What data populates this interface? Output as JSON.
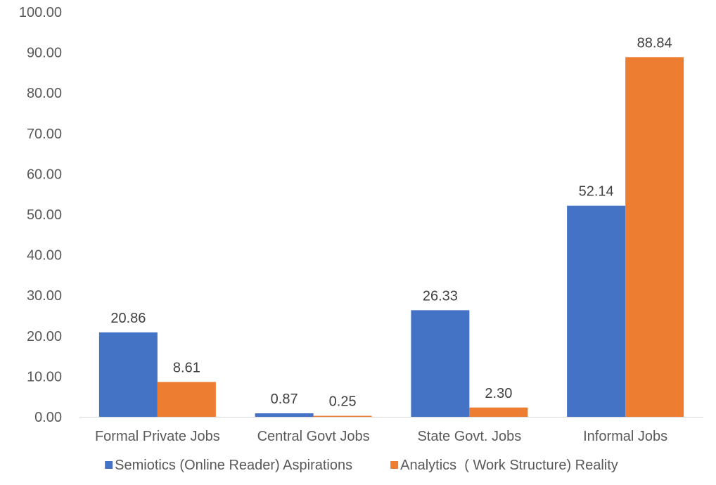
{
  "chart_data": {
    "type": "bar",
    "title": "",
    "xlabel": "",
    "ylabel": "",
    "categories": [
      "Formal Private Jobs",
      "Central Govt Jobs",
      "State Govt. Jobs",
      "Informal Jobs"
    ],
    "series": [
      {
        "name": "Semiotics (Online Reader) Aspirations",
        "color": "#4472C4",
        "values": [
          20.86,
          0.87,
          26.33,
          52.14
        ],
        "labels": [
          "20.86",
          "0.87",
          "26.33",
          "52.14"
        ]
      },
      {
        "name": "Analytics  ( Work Structure) Reality",
        "color": "#ED7D31",
        "values": [
          8.61,
          0.25,
          2.3,
          88.84
        ],
        "labels": [
          "8.61",
          "0.25",
          "2.30",
          "88.84"
        ]
      }
    ],
    "ylim": [
      0,
      100
    ],
    "yticks": [
      "0.00",
      "10.00",
      "20.00",
      "30.00",
      "40.00",
      "50.00",
      "60.00",
      "70.00",
      "80.00",
      "90.00",
      "100.00"
    ],
    "grid": false,
    "legend": "bottom"
  }
}
